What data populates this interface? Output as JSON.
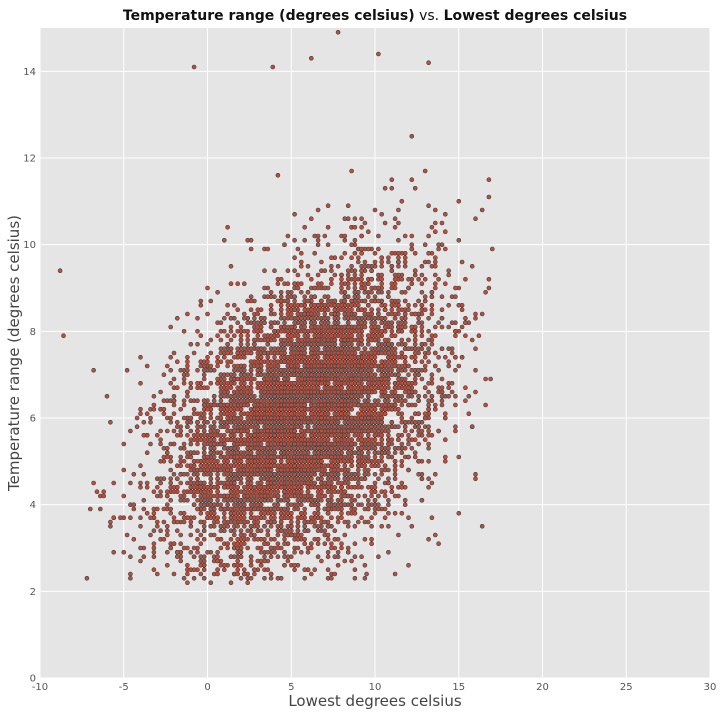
{
  "chart_data": {
    "type": "scatter",
    "title": {
      "part1": "Temperature range (degrees celsius)",
      "sep": " vs. ",
      "part2": "Lowest degrees celsius"
    },
    "xlabel": "Lowest degrees celsius",
    "ylabel": "Temperature range (degrees celsius)",
    "xlim": [
      -10,
      30
    ],
    "ylim": [
      0,
      15
    ],
    "xticks": [
      -10,
      -5,
      0,
      5,
      10,
      15,
      20,
      25,
      30
    ],
    "yticks": [
      0,
      2,
      4,
      6,
      8,
      10,
      12,
      14
    ],
    "grid": true,
    "style": "ggplot",
    "colors": {
      "background": "#e5e5e5",
      "grid": "#ffffff",
      "marker_fill": "#b8503f",
      "marker_edge": "#3a3a3a"
    },
    "distribution": {
      "description_of_points": "dense cloud of several thousand points",
      "x_range_observed": [
        -8.9,
        17
      ],
      "y_range_observed": [
        2.3,
        14.9
      ],
      "center_approx": [
        6,
        6.5
      ],
      "notable_points": [
        {
          "x": 7.8,
          "y": 14.9
        },
        {
          "x": 10.2,
          "y": 14.4
        },
        {
          "x": 6.2,
          "y": 14.3
        },
        {
          "x": 13.2,
          "y": 14.2
        },
        {
          "x": -0.8,
          "y": 14.1
        },
        {
          "x": 3.9,
          "y": 14.1
        },
        {
          "x": -8.8,
          "y": 9.4
        },
        {
          "x": -8.6,
          "y": 7.9
        },
        {
          "x": 16.8,
          "y": 11.5
        },
        {
          "x": 16.9,
          "y": 6.9
        },
        {
          "x": 4.2,
          "y": 2.3
        },
        {
          "x": 9.5,
          "y": 2.4
        }
      ]
    }
  }
}
